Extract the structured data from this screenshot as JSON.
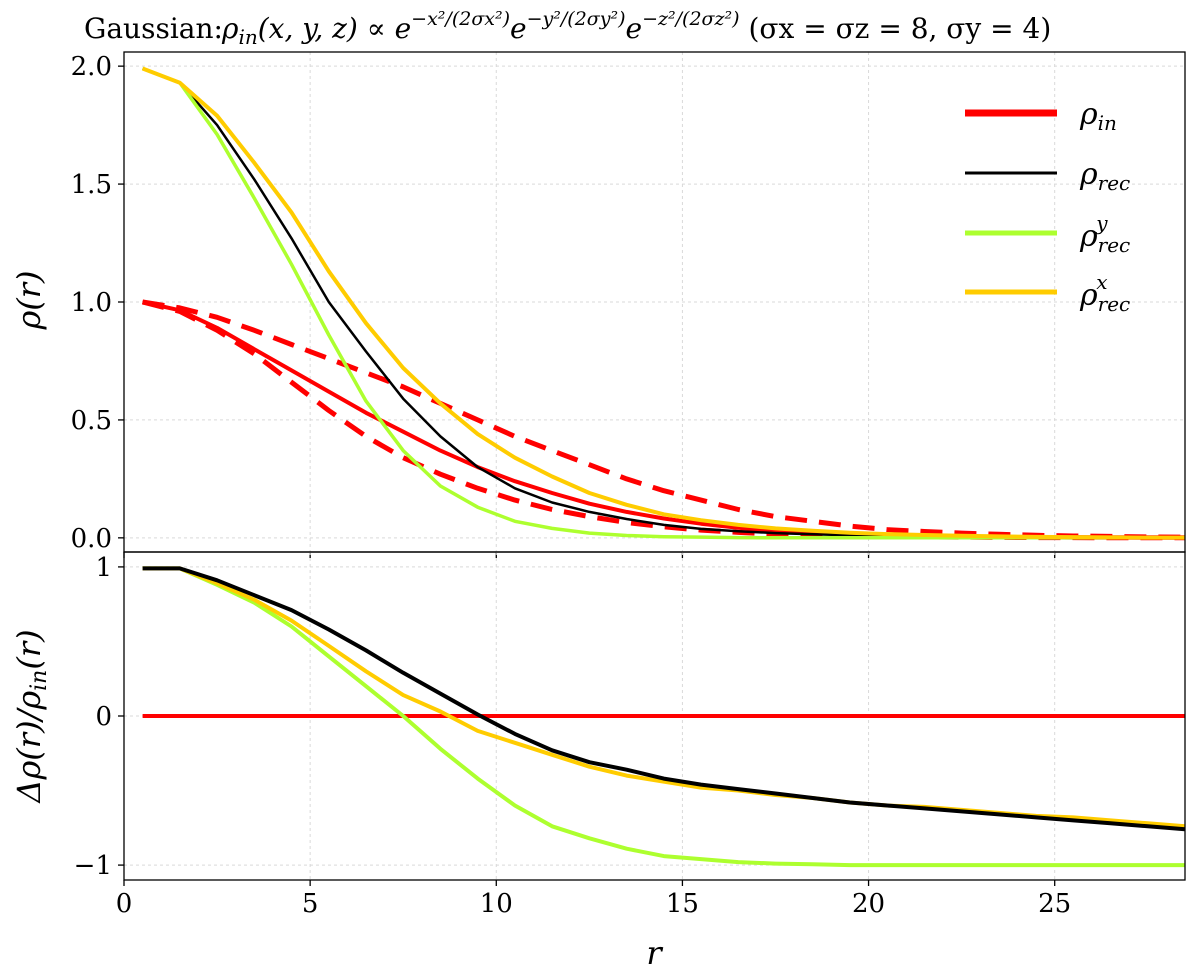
{
  "title": "Gaussian: ρin(x, y, z) ∝ e−x²/(2σx²) e−y²/(2σy²) e−z²/(2σz²) (σx = σz = 8, σy = 4)",
  "colors": {
    "rho_in": "#ff0000",
    "rho_rec": "#000000",
    "rho_rec_y": "#adff2f",
    "rho_rec_x": "#ffcc00",
    "grid": "#d9d9d9"
  },
  "chart_data": [
    {
      "type": "line",
      "panel": "top",
      "ylabel": "ρ(r)",
      "xlim": [
        0,
        28.5
      ],
      "ylim": [
        -0.06,
        2.06
      ],
      "yticks": [
        0.0,
        0.5,
        1.0,
        1.5,
        2.0
      ],
      "ytick_labels": [
        "0.0",
        "0.5",
        "1.0",
        "1.5",
        "2.0"
      ],
      "xticks": [
        0,
        5,
        10,
        15,
        20,
        25
      ],
      "grid": true,
      "legend_position": "top-right",
      "legend": [
        "ρin",
        "ρrec",
        "ρyrec",
        "ρxrec"
      ],
      "x": [
        0.5,
        1.5,
        2.5,
        3.5,
        4.5,
        5.5,
        6.5,
        7.5,
        8.5,
        9.5,
        10.5,
        11.5,
        12.5,
        13.5,
        14.5,
        15.5,
        16.5,
        17.5,
        18.5,
        19.5,
        20.5,
        21.5,
        22.5,
        23.5,
        24.5,
        25.5,
        26.5,
        27.5,
        28.5
      ],
      "series": [
        {
          "name": "ρin",
          "key": "rho_in",
          "style": "solid",
          "width": 4,
          "values": [
            1.0,
            0.965,
            0.89,
            0.8,
            0.71,
            0.62,
            0.53,
            0.45,
            0.37,
            0.3,
            0.24,
            0.19,
            0.145,
            0.11,
            0.082,
            0.06,
            0.043,
            0.03,
            0.021,
            0.014,
            0.01,
            0.007,
            0.005,
            0.003,
            0.002,
            0.001,
            0.001,
            0.0,
            0.0
          ]
        },
        {
          "key": "rho_in_dash_x",
          "style": "dashed",
          "width": 5,
          "values": [
            1.0,
            0.975,
            0.935,
            0.88,
            0.82,
            0.76,
            0.7,
            0.64,
            0.57,
            0.5,
            0.43,
            0.37,
            0.31,
            0.25,
            0.2,
            0.16,
            0.12,
            0.09,
            0.07,
            0.05,
            0.035,
            0.027,
            0.02,
            0.015,
            0.011,
            0.008,
            0.006,
            0.004,
            0.003
          ]
        },
        {
          "key": "rho_in_dash_y",
          "style": "dashed",
          "width": 5,
          "values": [
            1.0,
            0.96,
            0.88,
            0.78,
            0.66,
            0.54,
            0.43,
            0.34,
            0.27,
            0.21,
            0.16,
            0.12,
            0.09,
            0.065,
            0.047,
            0.033,
            0.023,
            0.016,
            0.011,
            0.008,
            0.006,
            0.004,
            0.003,
            0.002,
            0.001,
            0.001,
            0.0,
            0.0,
            0.0
          ]
        },
        {
          "name": "ρrec",
          "key": "rho_rec",
          "style": "solid",
          "width": 2.5,
          "values": [
            1.99,
            1.93,
            1.75,
            1.52,
            1.27,
            1.0,
            0.79,
            0.59,
            0.43,
            0.3,
            0.21,
            0.15,
            0.11,
            0.08,
            0.055,
            0.038,
            0.028,
            0.02,
            0.015,
            0.011,
            0.008,
            0.006,
            0.004,
            0.003,
            0.002,
            0.001,
            0.001,
            0.0,
            0.0
          ]
        },
        {
          "name": "ρyrec",
          "key": "rho_rec_y",
          "style": "solid",
          "width": 3.5,
          "values": [
            1.99,
            1.93,
            1.71,
            1.44,
            1.16,
            0.86,
            0.58,
            0.37,
            0.22,
            0.13,
            0.07,
            0.04,
            0.02,
            0.01,
            0.005,
            0.003,
            0.001,
            0.0,
            0.0,
            0.0,
            0.0,
            0.0,
            0.0,
            0.0,
            0.0,
            0.0,
            0.0,
            0.0,
            0.0
          ]
        },
        {
          "name": "ρxrec",
          "key": "rho_rec_x",
          "style": "solid",
          "width": 4,
          "values": [
            1.99,
            1.93,
            1.79,
            1.59,
            1.38,
            1.13,
            0.91,
            0.72,
            0.57,
            0.44,
            0.34,
            0.26,
            0.19,
            0.14,
            0.1,
            0.075,
            0.055,
            0.04,
            0.03,
            0.022,
            0.016,
            0.012,
            0.009,
            0.006,
            0.004,
            0.003,
            0.002,
            0.001,
            0.001
          ]
        }
      ]
    },
    {
      "type": "line",
      "panel": "bottom",
      "xlabel": "r",
      "ylabel": "Δρ(r)/ρin(r)",
      "xlim": [
        0,
        28.5
      ],
      "ylim": [
        -1.1,
        1.1
      ],
      "yticks": [
        -1,
        0,
        1
      ],
      "ytick_labels": [
        "−1",
        "0",
        "1"
      ],
      "xticks": [
        0,
        5,
        10,
        15,
        20,
        25
      ],
      "xtick_labels": [
        "0",
        "5",
        "10",
        "15",
        "20",
        "25"
      ],
      "grid": true,
      "x": [
        0.5,
        1.5,
        2.5,
        3.5,
        4.5,
        5.5,
        6.5,
        7.5,
        8.5,
        9.5,
        10.5,
        11.5,
        12.5,
        13.5,
        14.5,
        15.5,
        16.5,
        17.5,
        18.5,
        19.5,
        20.5,
        21.5,
        22.5,
        23.5,
        24.5,
        25.5,
        26.5,
        27.5,
        28.5
      ],
      "series": [
        {
          "key": "rho_in",
          "style": "solid",
          "width": 4,
          "values": [
            0,
            0,
            0,
            0,
            0,
            0,
            0,
            0,
            0,
            0,
            0,
            0,
            0,
            0,
            0,
            0,
            0,
            0,
            0,
            0,
            0,
            0,
            0,
            0,
            0,
            0,
            0,
            0,
            0
          ]
        },
        {
          "key": "rho_rec_y",
          "style": "solid",
          "width": 4,
          "values": [
            0.99,
            0.99,
            0.88,
            0.76,
            0.6,
            0.4,
            0.2,
            0.0,
            -0.22,
            -0.42,
            -0.6,
            -0.74,
            -0.82,
            -0.89,
            -0.94,
            -0.96,
            -0.98,
            -0.99,
            -0.995,
            -1.0,
            -1.0,
            -1.0,
            -1.0,
            -1.0,
            -1.0,
            -1.0,
            -1.0,
            -1.0,
            -1.0
          ]
        },
        {
          "key": "rho_rec_x",
          "style": "solid",
          "width": 4,
          "values": [
            0.99,
            0.99,
            0.89,
            0.78,
            0.64,
            0.47,
            0.3,
            0.14,
            0.03,
            -0.1,
            -0.18,
            -0.26,
            -0.34,
            -0.4,
            -0.44,
            -0.48,
            -0.5,
            -0.53,
            -0.55,
            -0.58,
            -0.6,
            -0.61,
            -0.63,
            -0.65,
            -0.67,
            -0.68,
            -0.7,
            -0.72,
            -0.74
          ]
        },
        {
          "key": "rho_rec",
          "style": "solid",
          "width": 4,
          "values": [
            0.99,
            0.99,
            0.91,
            0.81,
            0.71,
            0.58,
            0.44,
            0.29,
            0.15,
            0.01,
            -0.12,
            -0.23,
            -0.31,
            -0.36,
            -0.42,
            -0.46,
            -0.49,
            -0.52,
            -0.55,
            -0.58,
            -0.6,
            -0.62,
            -0.64,
            -0.66,
            -0.68,
            -0.7,
            -0.72,
            -0.74,
            -0.76
          ]
        }
      ]
    }
  ]
}
